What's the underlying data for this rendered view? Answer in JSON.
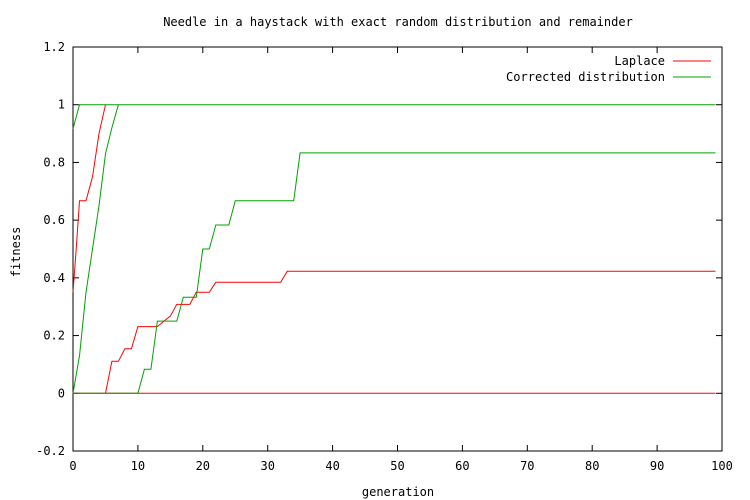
{
  "chart_data": {
    "type": "line",
    "title": "Needle in a haystack with exact random distribution and remainder",
    "xlabel": "generation",
    "ylabel": "fitness",
    "xlim": [
      0,
      100
    ],
    "ylim": [
      -0.2,
      1.2
    ],
    "xticks": [
      0,
      10,
      20,
      30,
      40,
      50,
      60,
      70,
      80,
      90,
      100
    ],
    "xtick_labels": [
      "0",
      "10",
      "20",
      "30",
      "40",
      "50",
      "60",
      "70",
      "80",
      "90",
      "100"
    ],
    "yticks": [
      -0.2,
      0,
      0.2,
      0.4,
      0.6,
      0.8,
      1,
      1.2
    ],
    "ytick_labels": [
      "-0.2",
      "0",
      "0.2",
      "0.4",
      "0.6",
      "0.8",
      "1",
      "1.2"
    ],
    "grid": false,
    "legend_position": "top-right",
    "legend": [
      {
        "label": "Laplace",
        "color": "#ff0000"
      },
      {
        "label": "Corrected distribution",
        "color": "#00a000"
      }
    ],
    "series": [
      {
        "legend_index": 0,
        "color": "#ff0000",
        "curves": [
          [
            [
              0,
              0.35
            ],
            [
              0.5,
              0.5
            ],
            [
              1,
              0.667
            ],
            [
              2,
              0.667
            ],
            [
              3,
              0.75
            ],
            [
              4,
              0.9
            ],
            [
              5,
              1
            ]
          ],
          [
            [
              5,
              0
            ],
            [
              6,
              0.111
            ],
            [
              7,
              0.111
            ],
            [
              8,
              0.154
            ],
            [
              9,
              0.154
            ],
            [
              10,
              0.231
            ],
            [
              11,
              0.231
            ],
            [
              12,
              0.231
            ],
            [
              13,
              0.231
            ],
            [
              14,
              0.25
            ],
            [
              15,
              0.267
            ],
            [
              16,
              0.308
            ],
            [
              17,
              0.308
            ],
            [
              18,
              0.308
            ],
            [
              19,
              0.35
            ],
            [
              20,
              0.35
            ],
            [
              21,
              0.35
            ],
            [
              22,
              0.385
            ],
            [
              30,
              0.385
            ],
            [
              32,
              0.385
            ],
            [
              33,
              0.423
            ],
            [
              99,
              0.423
            ]
          ],
          [
            [
              0,
              0
            ],
            [
              99,
              0
            ]
          ]
        ]
      },
      {
        "legend_index": 1,
        "color": "#00a000",
        "curves": [
          [
            [
              0,
              0.917
            ],
            [
              1,
              1
            ],
            [
              99,
              1
            ]
          ],
          [
            [
              0,
              0
            ],
            [
              1,
              0.13
            ],
            [
              2,
              0.35
            ],
            [
              3,
              0.5
            ],
            [
              4,
              0.65
            ],
            [
              5,
              0.83
            ],
            [
              6,
              0.92
            ],
            [
              7,
              1
            ]
          ],
          [
            [
              0,
              0
            ],
            [
              10,
              0
            ],
            [
              11,
              0.083
            ],
            [
              12,
              0.083
            ],
            [
              13,
              0.25
            ],
            [
              16,
              0.25
            ],
            [
              17,
              0.333
            ],
            [
              19,
              0.333
            ],
            [
              20,
              0.5
            ],
            [
              21,
              0.5
            ],
            [
              22,
              0.583
            ],
            [
              24,
              0.583
            ],
            [
              25,
              0.667
            ],
            [
              34,
              0.667
            ],
            [
              35,
              0.833
            ],
            [
              99,
              0.833
            ]
          ]
        ]
      }
    ]
  }
}
